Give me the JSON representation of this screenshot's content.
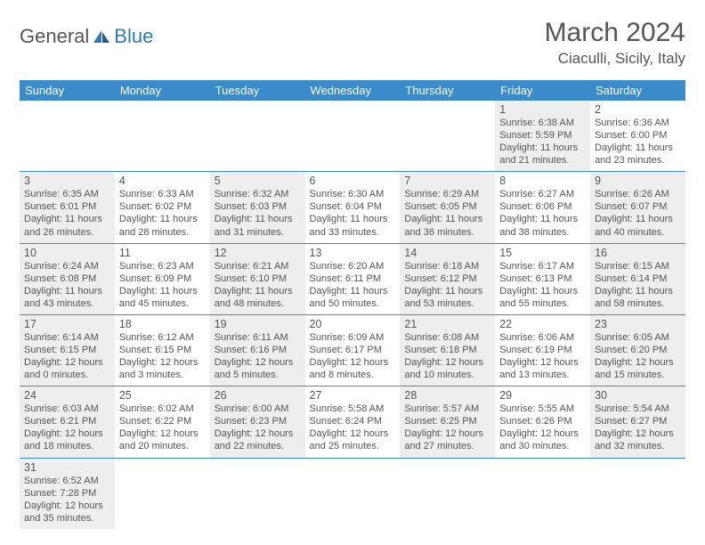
{
  "logo": {
    "text1": "General",
    "text2": "Blue"
  },
  "title": "March 2024",
  "location": "Ciaculli, Sicily, Italy",
  "colors": {
    "header_bg": "#3b8aca",
    "header_text": "#ffffff",
    "border": "#3b8aca",
    "shade": "#eeeeee",
    "text": "#555555",
    "logo_blue": "#2b7bb9"
  },
  "day_headers": [
    "Sunday",
    "Monday",
    "Tuesday",
    "Wednesday",
    "Thursday",
    "Friday",
    "Saturday"
  ],
  "weeks": [
    [
      {
        "day": "",
        "shaded": false,
        "lines": []
      },
      {
        "day": "",
        "shaded": false,
        "lines": []
      },
      {
        "day": "",
        "shaded": false,
        "lines": []
      },
      {
        "day": "",
        "shaded": false,
        "lines": []
      },
      {
        "day": "",
        "shaded": false,
        "lines": []
      },
      {
        "day": "1",
        "shaded": true,
        "lines": [
          "Sunrise: 6:38 AM",
          "Sunset: 5:59 PM",
          "Daylight: 11 hours",
          "and 21 minutes."
        ]
      },
      {
        "day": "2",
        "shaded": false,
        "lines": [
          "Sunrise: 6:36 AM",
          "Sunset: 6:00 PM",
          "Daylight: 11 hours",
          "and 23 minutes."
        ]
      }
    ],
    [
      {
        "day": "3",
        "shaded": true,
        "lines": [
          "Sunrise: 6:35 AM",
          "Sunset: 6:01 PM",
          "Daylight: 11 hours",
          "and 26 minutes."
        ]
      },
      {
        "day": "4",
        "shaded": false,
        "lines": [
          "Sunrise: 6:33 AM",
          "Sunset: 6:02 PM",
          "Daylight: 11 hours",
          "and 28 minutes."
        ]
      },
      {
        "day": "5",
        "shaded": true,
        "lines": [
          "Sunrise: 6:32 AM",
          "Sunset: 6:03 PM",
          "Daylight: 11 hours",
          "and 31 minutes."
        ]
      },
      {
        "day": "6",
        "shaded": false,
        "lines": [
          "Sunrise: 6:30 AM",
          "Sunset: 6:04 PM",
          "Daylight: 11 hours",
          "and 33 minutes."
        ]
      },
      {
        "day": "7",
        "shaded": true,
        "lines": [
          "Sunrise: 6:29 AM",
          "Sunset: 6:05 PM",
          "Daylight: 11 hours",
          "and 36 minutes."
        ]
      },
      {
        "day": "8",
        "shaded": false,
        "lines": [
          "Sunrise: 6:27 AM",
          "Sunset: 6:06 PM",
          "Daylight: 11 hours",
          "and 38 minutes."
        ]
      },
      {
        "day": "9",
        "shaded": true,
        "lines": [
          "Sunrise: 6:26 AM",
          "Sunset: 6:07 PM",
          "Daylight: 11 hours",
          "and 40 minutes."
        ]
      }
    ],
    [
      {
        "day": "10",
        "shaded": true,
        "lines": [
          "Sunrise: 6:24 AM",
          "Sunset: 6:08 PM",
          "Daylight: 11 hours",
          "and 43 minutes."
        ]
      },
      {
        "day": "11",
        "shaded": false,
        "lines": [
          "Sunrise: 6:23 AM",
          "Sunset: 6:09 PM",
          "Daylight: 11 hours",
          "and 45 minutes."
        ]
      },
      {
        "day": "12",
        "shaded": true,
        "lines": [
          "Sunrise: 6:21 AM",
          "Sunset: 6:10 PM",
          "Daylight: 11 hours",
          "and 48 minutes."
        ]
      },
      {
        "day": "13",
        "shaded": false,
        "lines": [
          "Sunrise: 6:20 AM",
          "Sunset: 6:11 PM",
          "Daylight: 11 hours",
          "and 50 minutes."
        ]
      },
      {
        "day": "14",
        "shaded": true,
        "lines": [
          "Sunrise: 6:18 AM",
          "Sunset: 6:12 PM",
          "Daylight: 11 hours",
          "and 53 minutes."
        ]
      },
      {
        "day": "15",
        "shaded": false,
        "lines": [
          "Sunrise: 6:17 AM",
          "Sunset: 6:13 PM",
          "Daylight: 11 hours",
          "and 55 minutes."
        ]
      },
      {
        "day": "16",
        "shaded": true,
        "lines": [
          "Sunrise: 6:15 AM",
          "Sunset: 6:14 PM",
          "Daylight: 11 hours",
          "and 58 minutes."
        ]
      }
    ],
    [
      {
        "day": "17",
        "shaded": true,
        "lines": [
          "Sunrise: 6:14 AM",
          "Sunset: 6:15 PM",
          "Daylight: 12 hours",
          "and 0 minutes."
        ]
      },
      {
        "day": "18",
        "shaded": false,
        "lines": [
          "Sunrise: 6:12 AM",
          "Sunset: 6:15 PM",
          "Daylight: 12 hours",
          "and 3 minutes."
        ]
      },
      {
        "day": "19",
        "shaded": true,
        "lines": [
          "Sunrise: 6:11 AM",
          "Sunset: 6:16 PM",
          "Daylight: 12 hours",
          "and 5 minutes."
        ]
      },
      {
        "day": "20",
        "shaded": false,
        "lines": [
          "Sunrise: 6:09 AM",
          "Sunset: 6:17 PM",
          "Daylight: 12 hours",
          "and 8 minutes."
        ]
      },
      {
        "day": "21",
        "shaded": true,
        "lines": [
          "Sunrise: 6:08 AM",
          "Sunset: 6:18 PM",
          "Daylight: 12 hours",
          "and 10 minutes."
        ]
      },
      {
        "day": "22",
        "shaded": false,
        "lines": [
          "Sunrise: 6:06 AM",
          "Sunset: 6:19 PM",
          "Daylight: 12 hours",
          "and 13 minutes."
        ]
      },
      {
        "day": "23",
        "shaded": true,
        "lines": [
          "Sunrise: 6:05 AM",
          "Sunset: 6:20 PM",
          "Daylight: 12 hours",
          "and 15 minutes."
        ]
      }
    ],
    [
      {
        "day": "24",
        "shaded": true,
        "lines": [
          "Sunrise: 6:03 AM",
          "Sunset: 6:21 PM",
          "Daylight: 12 hours",
          "and 18 minutes."
        ]
      },
      {
        "day": "25",
        "shaded": false,
        "lines": [
          "Sunrise: 6:02 AM",
          "Sunset: 6:22 PM",
          "Daylight: 12 hours",
          "and 20 minutes."
        ]
      },
      {
        "day": "26",
        "shaded": true,
        "lines": [
          "Sunrise: 6:00 AM",
          "Sunset: 6:23 PM",
          "Daylight: 12 hours",
          "and 22 minutes."
        ]
      },
      {
        "day": "27",
        "shaded": false,
        "lines": [
          "Sunrise: 5:58 AM",
          "Sunset: 6:24 PM",
          "Daylight: 12 hours",
          "and 25 minutes."
        ]
      },
      {
        "day": "28",
        "shaded": true,
        "lines": [
          "Sunrise: 5:57 AM",
          "Sunset: 6:25 PM",
          "Daylight: 12 hours",
          "and 27 minutes."
        ]
      },
      {
        "day": "29",
        "shaded": false,
        "lines": [
          "Sunrise: 5:55 AM",
          "Sunset: 6:26 PM",
          "Daylight: 12 hours",
          "and 30 minutes."
        ]
      },
      {
        "day": "30",
        "shaded": true,
        "lines": [
          "Sunrise: 5:54 AM",
          "Sunset: 6:27 PM",
          "Daylight: 12 hours",
          "and 32 minutes."
        ]
      }
    ],
    [
      {
        "day": "31",
        "shaded": true,
        "lines": [
          "Sunrise: 6:52 AM",
          "Sunset: 7:28 PM",
          "Daylight: 12 hours",
          "and 35 minutes."
        ]
      },
      {
        "day": "",
        "shaded": false,
        "lines": []
      },
      {
        "day": "",
        "shaded": false,
        "lines": []
      },
      {
        "day": "",
        "shaded": false,
        "lines": []
      },
      {
        "day": "",
        "shaded": false,
        "lines": []
      },
      {
        "day": "",
        "shaded": false,
        "lines": []
      },
      {
        "day": "",
        "shaded": false,
        "lines": []
      }
    ]
  ]
}
